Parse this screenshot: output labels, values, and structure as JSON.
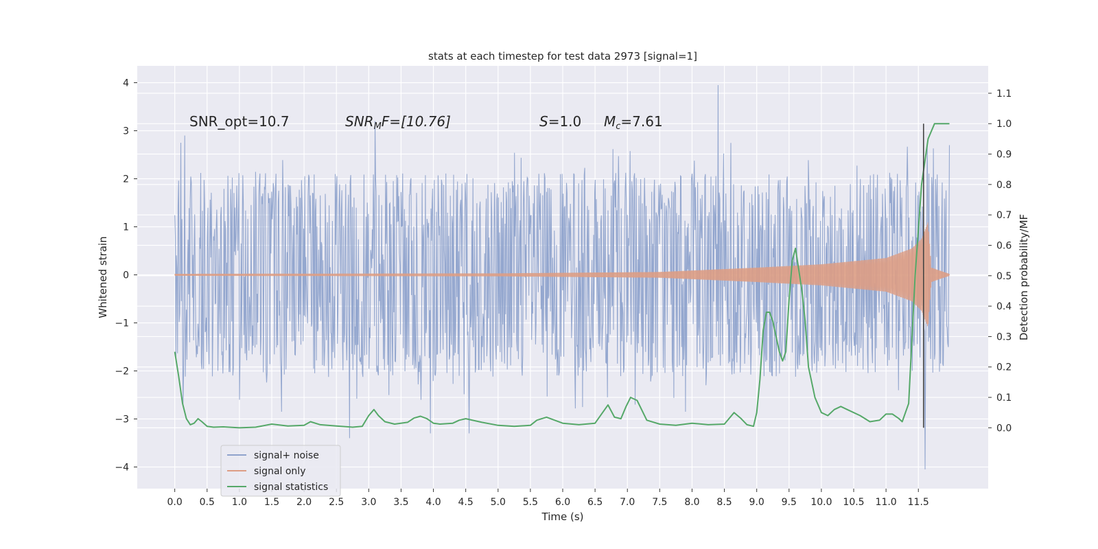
{
  "chart_data": {
    "type": "line",
    "title": "stats at each timestep for test data 2973 [signal=1]",
    "xlabel": "Time (s)",
    "ylabel_left": "Whitened strain",
    "ylabel_right": "Detection probability/MF",
    "xlim": [
      -0.58,
      12.58
    ],
    "ylim_left": [
      -4.45,
      4.35
    ],
    "ylim_right": [
      -0.2,
      1.19
    ],
    "x_ticks": [
      "0.0",
      "0.5",
      "1.0",
      "1.5",
      "2.0",
      "2.5",
      "3.0",
      "3.5",
      "4.0",
      "4.5",
      "5.0",
      "5.5",
      "6.0",
      "6.5",
      "7.0",
      "7.5",
      "8.0",
      "8.5",
      "9.0",
      "9.5",
      "10.0",
      "10.5",
      "11.0",
      "11.5"
    ],
    "y_ticks_left": [
      "4",
      "3",
      "2",
      "1",
      "0",
      "−1",
      "−2",
      "−3",
      "−4"
    ],
    "y_ticks_right": [
      "1.1",
      "1.0",
      "0.9",
      "0.8",
      "0.7",
      "0.6",
      "0.5",
      "0.4",
      "0.3",
      "0.2",
      "0.1",
      "0.0"
    ],
    "grid": true,
    "legend_position": "lower-left",
    "annotations": {
      "snr_opt": "SNR_opt=10.7",
      "snr_mf_a": "SNR",
      "snr_mf_sub": "M",
      "snr_mf_b": "F=[10.76]",
      "s_a": "S",
      "s_b": "=1.0",
      "mc_a": "M",
      "mc_sub": "c",
      "mc_b": "=7.61"
    },
    "merger_line_x": 11.58,
    "series": [
      {
        "name": "signal+ noise",
        "axis": "left",
        "color": "#8fa3cc",
        "style": "noise-band",
        "x_range": [
          0.0,
          11.98
        ],
        "typical_range": [
          -1.7,
          1.7
        ],
        "peaks": [
          [
            0.15,
            2.9
          ],
          [
            1.0,
            -2.6
          ],
          [
            1.65,
            -2.85
          ],
          [
            2.7,
            -3.4
          ],
          [
            3.1,
            3.2
          ],
          [
            3.95,
            -3.3
          ],
          [
            4.55,
            -3.3
          ],
          [
            7.9,
            -2.85
          ],
          [
            8.4,
            3.95
          ],
          [
            11.6,
            -4.05
          ],
          [
            11.98,
            2.7
          ]
        ]
      },
      {
        "name": "signal only",
        "axis": "left",
        "color": "#dd9d84",
        "style": "chirp",
        "x_range": [
          0.0,
          11.98
        ],
        "amplitude": [
          [
            0.0,
            0.02
          ],
          [
            5.0,
            0.03
          ],
          [
            7.5,
            0.06
          ],
          [
            9.0,
            0.15
          ],
          [
            10.0,
            0.22
          ],
          [
            11.0,
            0.35
          ],
          [
            11.4,
            0.55
          ],
          [
            11.55,
            0.75
          ],
          [
            11.65,
            1.1
          ],
          [
            11.7,
            0.15
          ],
          [
            11.98,
            0.02
          ]
        ]
      },
      {
        "name": "signal statistics",
        "axis": "right",
        "color": "#55a868",
        "style": "line",
        "x": [
          0.0,
          0.06,
          0.12,
          0.18,
          0.24,
          0.3,
          0.36,
          0.42,
          0.5,
          0.6,
          0.75,
          1.0,
          1.25,
          1.5,
          1.75,
          2.0,
          2.1,
          2.25,
          2.5,
          2.75,
          2.9,
          3.0,
          3.08,
          3.15,
          3.25,
          3.4,
          3.6,
          3.7,
          3.8,
          3.9,
          4.0,
          4.1,
          4.3,
          4.4,
          4.5,
          4.75,
          5.0,
          5.25,
          5.5,
          5.6,
          5.75,
          6.0,
          6.25,
          6.5,
          6.6,
          6.7,
          6.8,
          6.9,
          6.98,
          7.05,
          7.15,
          7.3,
          7.5,
          7.75,
          8.0,
          8.25,
          8.5,
          8.65,
          8.75,
          8.85,
          8.95,
          9.0,
          9.05,
          9.1,
          9.15,
          9.2,
          9.25,
          9.3,
          9.35,
          9.4,
          9.45,
          9.5,
          9.55,
          9.6,
          9.65,
          9.7,
          9.75,
          9.8,
          9.9,
          10.0,
          10.1,
          10.2,
          10.3,
          10.4,
          10.6,
          10.75,
          10.9,
          11.0,
          11.1,
          11.2,
          11.25,
          11.35,
          11.45,
          11.55,
          11.65,
          11.75,
          11.85,
          11.98
        ],
        "y": [
          0.25,
          0.17,
          0.08,
          0.03,
          0.01,
          0.015,
          0.03,
          0.02,
          0.005,
          0.002,
          0.003,
          0.0,
          0.002,
          0.012,
          0.006,
          0.008,
          0.02,
          0.01,
          0.006,
          0.002,
          0.005,
          0.04,
          0.06,
          0.04,
          0.02,
          0.012,
          0.018,
          0.032,
          0.038,
          0.03,
          0.015,
          0.012,
          0.015,
          0.025,
          0.03,
          0.018,
          0.008,
          0.005,
          0.008,
          0.025,
          0.035,
          0.015,
          0.01,
          0.015,
          0.045,
          0.075,
          0.035,
          0.03,
          0.07,
          0.1,
          0.09,
          0.025,
          0.012,
          0.008,
          0.015,
          0.01,
          0.012,
          0.05,
          0.032,
          0.01,
          0.005,
          0.05,
          0.16,
          0.32,
          0.38,
          0.38,
          0.35,
          0.3,
          0.25,
          0.22,
          0.25,
          0.42,
          0.55,
          0.59,
          0.52,
          0.45,
          0.35,
          0.2,
          0.1,
          0.05,
          0.04,
          0.06,
          0.07,
          0.06,
          0.04,
          0.02,
          0.025,
          0.045,
          0.045,
          0.03,
          0.02,
          0.08,
          0.5,
          0.8,
          0.95,
          1.0,
          1.0,
          1.0
        ]
      }
    ]
  }
}
